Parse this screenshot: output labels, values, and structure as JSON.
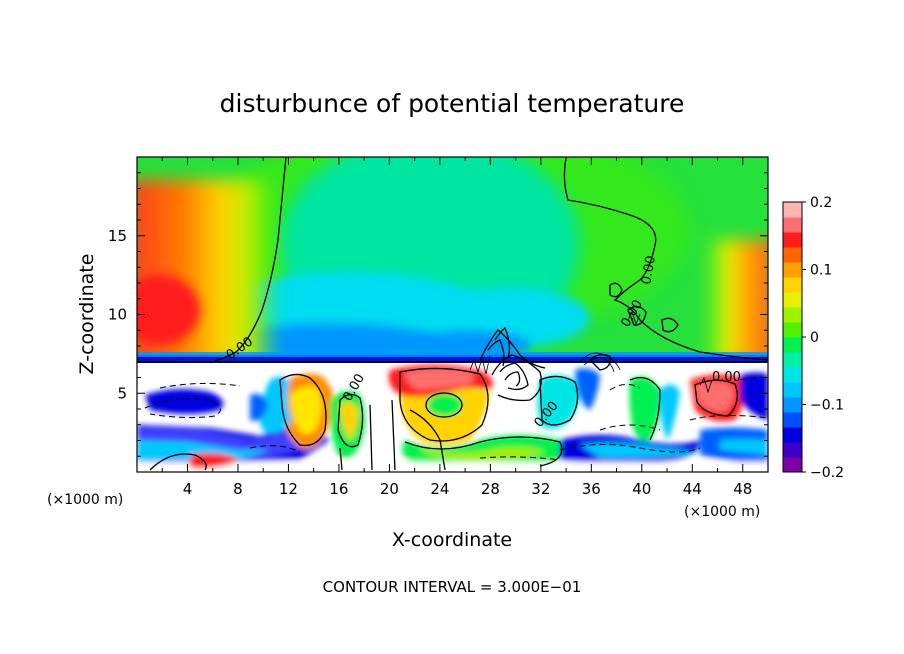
{
  "chart_data": {
    "type": "heatmap",
    "title": "disturbunce of potential temperature",
    "xlabel": "X-coordinate",
    "ylabel": "Z-coordinate",
    "x_unit": "(×1000 m)",
    "x_unit_right": "(×1000 m)",
    "xlim": [
      0,
      50
    ],
    "ylim": [
      0,
      20
    ],
    "x_ticks": [
      4,
      8,
      12,
      16,
      20,
      24,
      28,
      32,
      36,
      40,
      44,
      48
    ],
    "y_ticks": [
      5,
      10,
      15
    ],
    "colorbar": {
      "range": [
        -0.2,
        0.2
      ],
      "tick_values": [
        -0.2,
        -0.1,
        0,
        0.1,
        0.2
      ],
      "tick_labels": [
        "−0.2",
        "−0.1",
        "0",
        "0.1",
        "0.2"
      ],
      "colors": [
        "#7f00a8",
        "#3a00c8",
        "#0000e0",
        "#0050ff",
        "#0096ff",
        "#00c8ff",
        "#00e6e6",
        "#00f0a8",
        "#00f050",
        "#50f000",
        "#a0f000",
        "#e6f000",
        "#ffd200",
        "#ffa000",
        "#ff6400",
        "#ff1e1e",
        "#ff6e6e",
        "#ffb4b4"
      ]
    },
    "contour_labels": [
      "0.00",
      "0.00",
      "0.00",
      "0.00",
      "0.00",
      "0.00"
    ],
    "footer": "CONTOUR INTERVAL = 3.000E−01"
  }
}
